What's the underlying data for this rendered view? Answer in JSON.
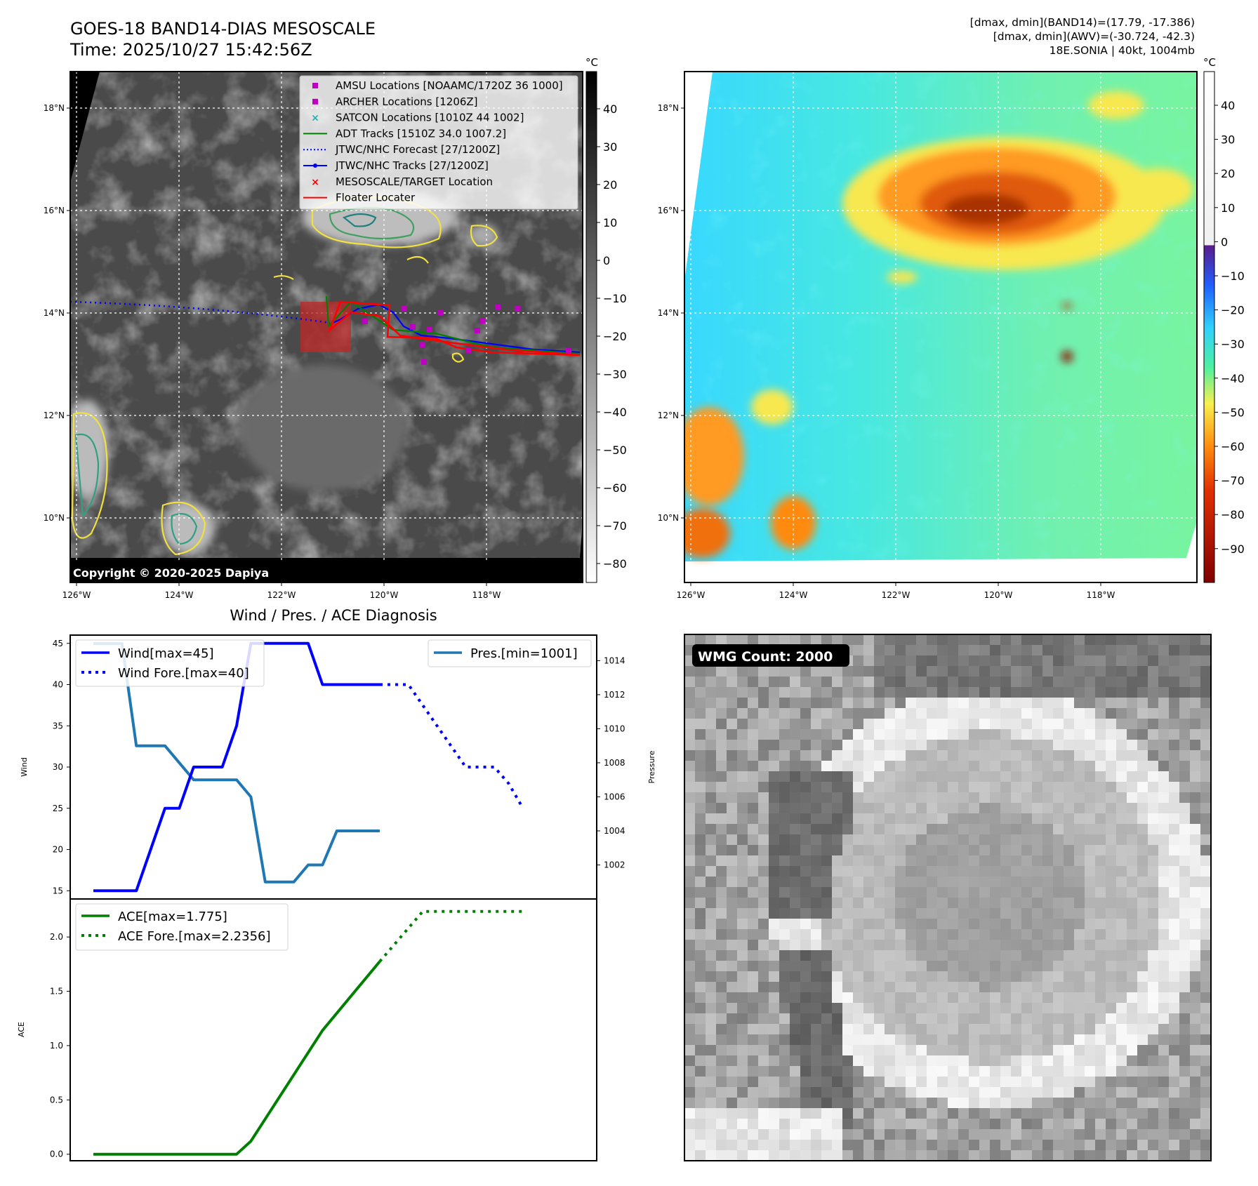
{
  "header": {
    "title": "GOES-18 BAND14-DIAS MESOSCALE",
    "time": "Time: 2025/10/27 15:42:56Z",
    "stats": [
      "[dmax, dmin](BAND14)=(17.79, -17.386)",
      "[dmax, dmin](AWV)=(-30.724, -42.3)",
      "18E.SONIA | 40kt, 1004mb"
    ]
  },
  "map": {
    "lon_ticks": [
      "126°W",
      "124°W",
      "122°W",
      "120°W",
      "118°W"
    ],
    "lat_ticks": [
      "18°N",
      "16°N",
      "14°N",
      "12°N",
      "10°N"
    ],
    "copyright": "Copyright © 2020-2025 Dapiya",
    "legend": [
      {
        "label": "AMSU Locations [NOAAMC/1720Z 36 1000]",
        "marker": "square",
        "color": "#c000c0"
      },
      {
        "label": "ARCHER Locations [1206Z]",
        "marker": "square",
        "color": "#c000c0"
      },
      {
        "label": "SATCON Locations [1010Z 44 1002]",
        "marker": "x",
        "color": "#20b0b0"
      },
      {
        "label": "ADT Tracks [1510Z 34.0 1007.2]",
        "marker": "line",
        "color": "#008000"
      },
      {
        "label": "JTWC/NHC Forecast [27/1200Z]",
        "marker": "dotted",
        "color": "#0000ff"
      },
      {
        "label": "JTWC/NHC Tracks [27/1200Z]",
        "marker": "line-dot",
        "color": "#0000ff"
      },
      {
        "label": "MESOSCALE/TARGET Location",
        "marker": "x",
        "color": "#ff0000"
      },
      {
        "label": "Floater Locater",
        "marker": "line",
        "color": "#ff0000"
      }
    ],
    "colorbar_unit": "°C",
    "gray_colorbar_ticks": [
      "40",
      "30",
      "20",
      "10",
      "0",
      "−10",
      "−20",
      "−30",
      "−40",
      "−50",
      "−60",
      "−70",
      "−80"
    ],
    "color_colorbar_ticks": [
      "40",
      "30",
      "20",
      "10",
      "0",
      "−10",
      "−20",
      "−30",
      "−40",
      "−50",
      "−60",
      "−70",
      "−80",
      "−90"
    ]
  },
  "diagnosis_title": "Wind / Pres. / ACE Diagnosis",
  "wmg": {
    "badge": "WMG Count: 2000"
  },
  "chart_data": [
    {
      "type": "line",
      "ylabel": "Wind",
      "ylim": [
        14,
        46
      ],
      "yticks": [
        15,
        20,
        25,
        30,
        35,
        40,
        45
      ],
      "series": [
        {
          "name": "Wind[max=45]",
          "style": "solid",
          "color": "#0000ff",
          "x": [
            0,
            3,
            5,
            6,
            7,
            8,
            9,
            10,
            11,
            12,
            13,
            14,
            15,
            16,
            17,
            18,
            19,
            20
          ],
          "values": [
            15,
            15,
            25,
            25,
            30,
            30,
            30,
            35,
            45,
            45,
            45,
            45,
            45,
            40,
            40,
            40,
            40,
            40
          ]
        },
        {
          "name": "Wind Fore.[max=40]",
          "style": "dotted",
          "color": "#0000ff",
          "x": [
            20,
            22,
            24,
            26,
            27,
            28,
            29,
            30
          ],
          "values": [
            40,
            40,
            35,
            30,
            30,
            30,
            28,
            25
          ]
        }
      ]
    },
    {
      "type": "line",
      "ylabel": "Pressure",
      "ylim": [
        1000.0,
        1015.5
      ],
      "yticks": [
        1002,
        1004,
        1006,
        1008,
        1010,
        1012,
        1014
      ],
      "series": [
        {
          "name": "Pres.[min=1001]",
          "style": "solid",
          "color": "#1f77b4",
          "x": [
            0,
            2,
            3,
            4,
            5,
            6,
            7,
            8,
            9,
            10,
            11,
            12,
            13,
            14,
            15,
            16,
            17,
            18,
            19,
            20
          ],
          "values": [
            1015,
            1015,
            1009,
            1009,
            1009,
            1008,
            1007,
            1007,
            1007,
            1007,
            1006,
            1001,
            1001,
            1001,
            1002,
            1002,
            1004,
            1004,
            1004,
            1004
          ]
        }
      ]
    },
    {
      "type": "line",
      "ylabel": "ACE",
      "ylim": [
        -0.06,
        2.35
      ],
      "yticks": [
        0.0,
        0.5,
        1.0,
        1.5,
        2.0
      ],
      "ytick_labels": [
        "0.0",
        "0.5",
        "1.0",
        "1.5",
        "2.0"
      ],
      "series": [
        {
          "name": "ACE[max=1.775]",
          "style": "solid",
          "color": "#008000",
          "x": [
            0,
            10,
            11,
            16,
            20
          ],
          "values": [
            0.0,
            0.0,
            0.12,
            1.14,
            1.775
          ]
        },
        {
          "name": "ACE Fore.[max=2.2356]",
          "style": "dotted",
          "color": "#008000",
          "x": [
            20,
            23,
            30
          ],
          "values": [
            1.775,
            2.2356,
            2.2356
          ]
        }
      ]
    }
  ]
}
